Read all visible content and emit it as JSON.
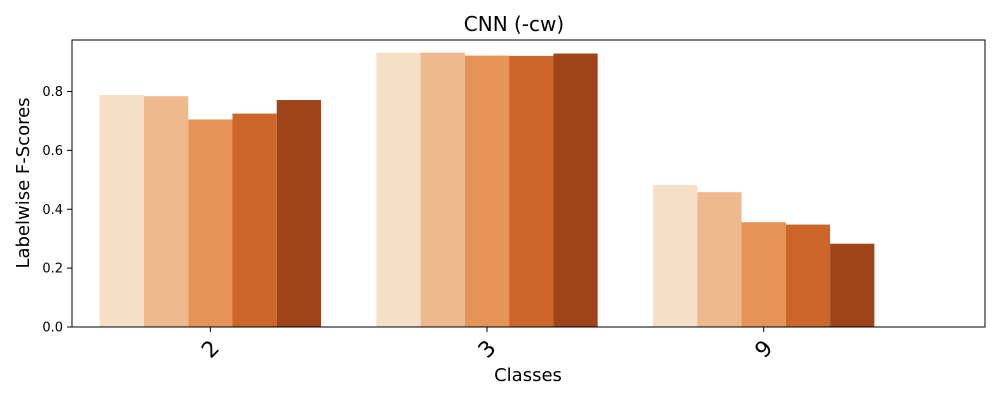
{
  "chart_data": {
    "type": "bar",
    "title": "CNN (-cw)",
    "xlabel": "Classes",
    "ylabel": "Labelwise F-Scores",
    "categories": [
      "2",
      "3",
      "9"
    ],
    "ylim": [
      0,
      0.975
    ],
    "yticks": [
      "0.0",
      "0.2",
      "0.4",
      "0.6",
      "0.8"
    ],
    "grid": false,
    "legend": "none",
    "series": [
      {
        "values": [
          0.788,
          0.932,
          0.482
        ],
        "color": "#f6dfc7"
      },
      {
        "values": [
          0.784,
          0.932,
          0.458
        ],
        "color": "#eeb98c"
      },
      {
        "values": [
          0.705,
          0.922,
          0.356
        ],
        "color": "#e59357"
      },
      {
        "values": [
          0.725,
          0.921,
          0.348
        ],
        "color": "#cb652a"
      },
      {
        "values": [
          0.771,
          0.929,
          0.283
        ],
        "color": "#9f4419"
      }
    ]
  }
}
